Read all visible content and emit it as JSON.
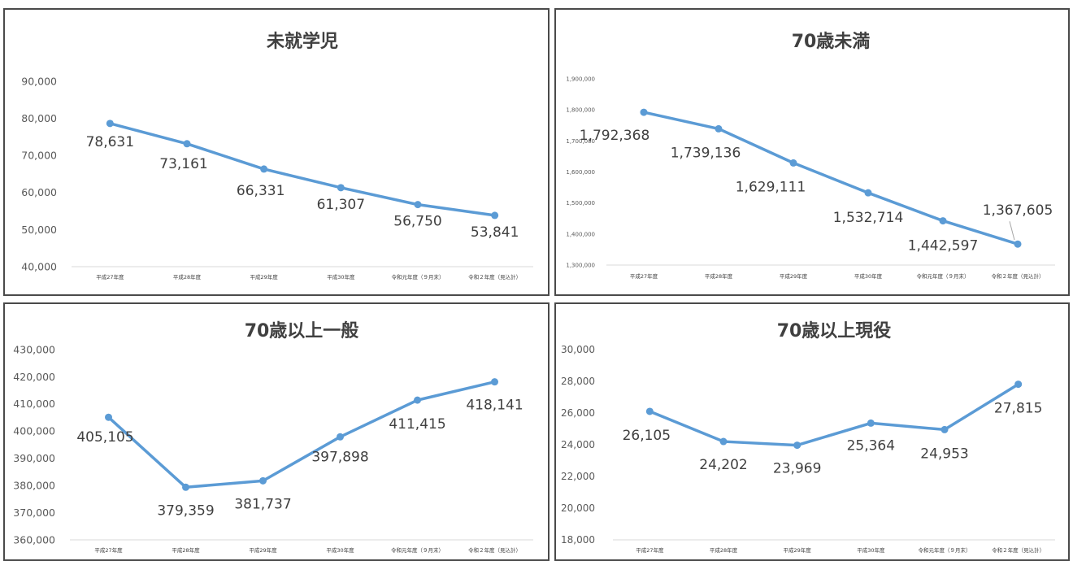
{
  "chart_data": [
    {
      "type": "line",
      "title": "未就学児",
      "categories": [
        "平成27年度",
        "平成28年度",
        "平成29年度",
        "平成30年度",
        "令和元年度（９月末）",
        "令和２年度（見込計）"
      ],
      "values": [
        78631,
        73161,
        66331,
        61307,
        56750,
        53841
      ],
      "data_labels": [
        "78,631",
        "73,161",
        "66,331",
        "61,307",
        "56,750",
        "53,841"
      ],
      "ylim": [
        40000,
        90000
      ],
      "yticks": [
        "40,000",
        "50,000",
        "60,000",
        "70,000",
        "80,000",
        "90,000"
      ],
      "grid": false,
      "legend": "none",
      "color": "#5b9bd5"
    },
    {
      "type": "line",
      "title": "70歳未満",
      "categories": [
        "平成27年度",
        "平成28年度",
        "平成29年度",
        "平成30年度",
        "令和元年度（９月末）",
        "令和２年度（見込計）"
      ],
      "values": [
        1792368,
        1739136,
        1629111,
        1532714,
        1442597,
        1367605
      ],
      "data_labels": [
        "1,792,368",
        "1,739,136",
        "1,629,111",
        "1,532,714",
        "1,442,597",
        "1,367,605"
      ],
      "ylim": [
        1300000,
        1900000
      ],
      "yticks": [
        "1,300,000",
        "1,400,000",
        "1,500,000",
        "1,600,000",
        "1,700,000",
        "1,800,000",
        "1,900,000"
      ],
      "grid": false,
      "legend": "none",
      "color": "#5b9bd5"
    },
    {
      "type": "line",
      "title": "70歳以上一般",
      "categories": [
        "平成27年度",
        "平成28年度",
        "平成29年度",
        "平成30年度",
        "令和元年度（９月末）",
        "令和２年度（見込計）"
      ],
      "values": [
        405105,
        379359,
        381737,
        397898,
        411415,
        418141
      ],
      "data_labels": [
        "405,105",
        "379,359",
        "381,737",
        "397,898",
        "411,415",
        "418,141"
      ],
      "ylim": [
        360000,
        430000
      ],
      "yticks": [
        "360,000",
        "370,000",
        "380,000",
        "390,000",
        "400,000",
        "410,000",
        "420,000",
        "430,000"
      ],
      "grid": false,
      "legend": "none",
      "color": "#5b9bd5"
    },
    {
      "type": "line",
      "title": "70歳以上現役",
      "categories": [
        "平成27年度",
        "平成28年度",
        "平成29年度",
        "平成30年度",
        "令和元年度（９月末）",
        "令和２年度（見込計）"
      ],
      "values": [
        26105,
        24202,
        23969,
        25364,
        24953,
        27815
      ],
      "data_labels": [
        "26,105",
        "24,202",
        "23,969",
        "25,364",
        "24,953",
        "27,815"
      ],
      "ylim": [
        18000,
        30000
      ],
      "yticks": [
        "18,000",
        "20,000",
        "22,000",
        "24,000",
        "26,000",
        "28,000",
        "30,000"
      ],
      "grid": false,
      "legend": "none",
      "color": "#5b9bd5"
    }
  ]
}
